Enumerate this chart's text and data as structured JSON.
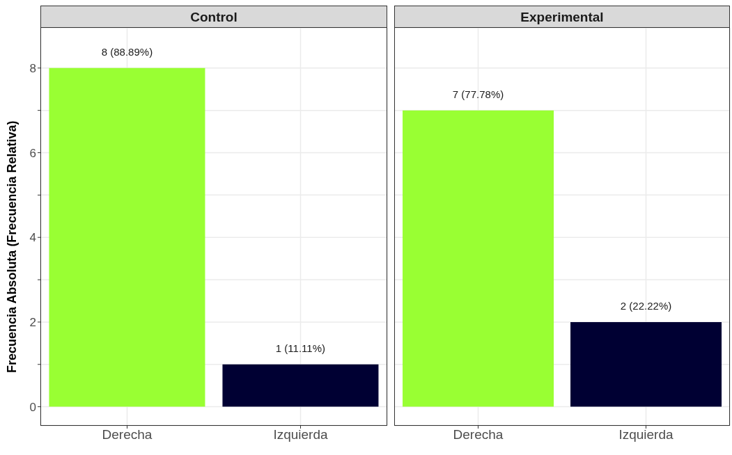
{
  "chart_data": [
    {
      "type": "bar",
      "title": "Control",
      "ylabel": "Frecuencia Absoluta (Frecuencia Relativa)",
      "categories": [
        "Derecha",
        "Izquierda"
      ],
      "values": [
        8,
        1
      ],
      "colors": [
        "#99ff33",
        "#000033"
      ],
      "value_labels": [
        "8 (88.89%)",
        "1 (11.11%)"
      ],
      "ylim": [
        -0.45,
        8.95
      ],
      "yticks": [
        0,
        {
          "value": 1,
          "label": null
        },
        2,
        {
          "value": 3,
          "label": null
        },
        4,
        {
          "value": 5,
          "label": null
        },
        6,
        {
          "value": 7,
          "label": null
        },
        8
      ],
      "grid": true
    },
    {
      "type": "bar",
      "title": "Experimental",
      "categories": [
        "Derecha",
        "Izquierda"
      ],
      "values": [
        7,
        2
      ],
      "colors": [
        "#99ff33",
        "#000033"
      ],
      "value_labels": [
        "7 (77.78%)",
        "2 (22.22%)"
      ],
      "ylim": [
        -0.45,
        8.95
      ],
      "yticks": [
        0,
        {
          "value": 1,
          "label": null
        },
        2,
        {
          "value": 3,
          "label": null
        },
        4,
        {
          "value": 5,
          "label": null
        },
        6,
        {
          "value": 7,
          "label": null
        },
        8
      ],
      "grid": true,
      "tick_labels": "x"
    }
  ]
}
